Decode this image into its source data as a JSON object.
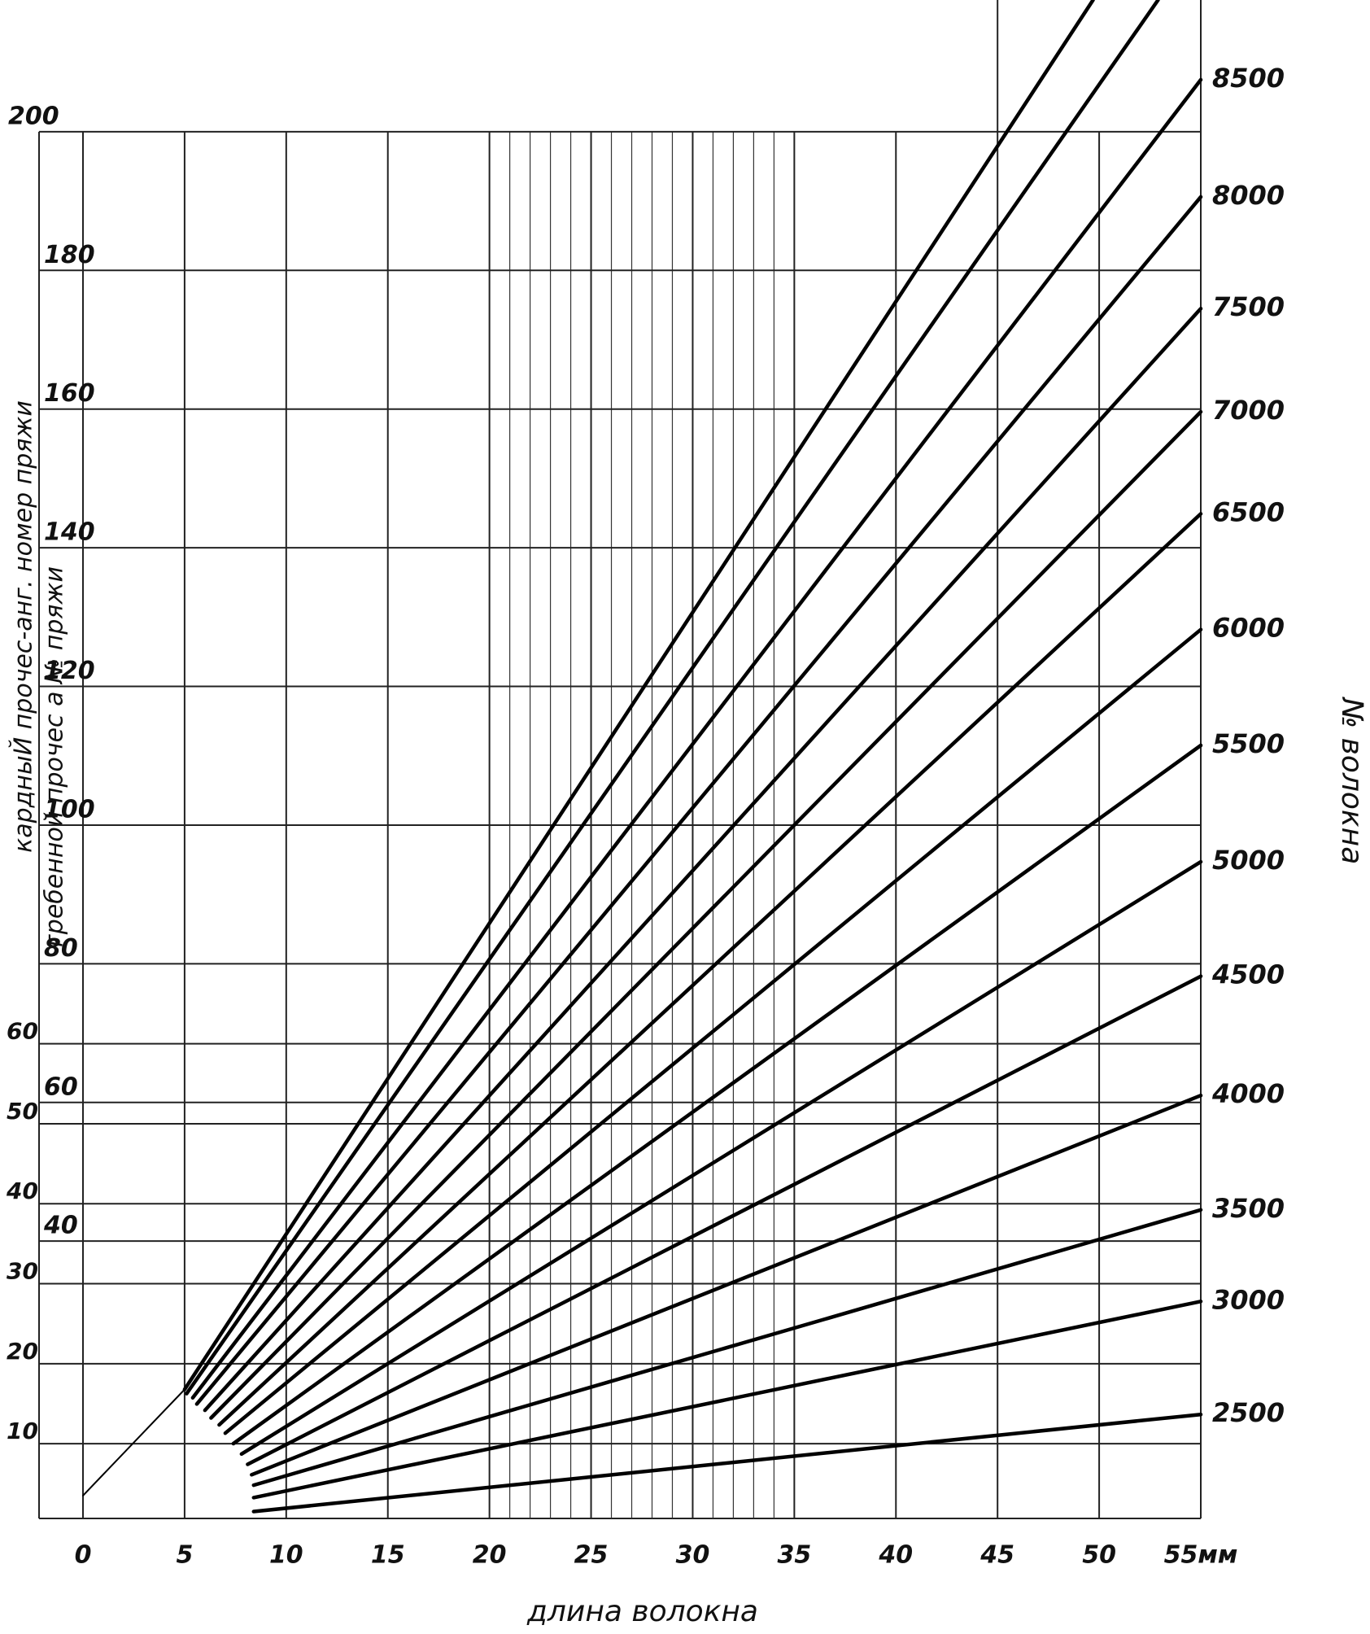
{
  "chart_data": {
    "type": "line",
    "x_label": "длина волокна",
    "y_label": "кардныЙ прочес-анг. номер пряжи",
    "y_label_inner": "гребенной прочес а № пряжи",
    "y2_label": "№ волокна",
    "xlim": [
      0,
      55
    ],
    "xticks": [
      0,
      5,
      10,
      15,
      20,
      25,
      30,
      35,
      40,
      45,
      50,
      {
        "value": 55,
        "label": "55мм"
      }
    ],
    "xgrid_minor": [
      21,
      22,
      23,
      24,
      26,
      27,
      28,
      29,
      31,
      32,
      33,
      34
    ],
    "ylim": [
      0,
      219
    ],
    "yticks": [
      40,
      60,
      80,
      100,
      120,
      140,
      160,
      180,
      200
    ],
    "y2lim": [
      0.65,
      190.5
    ],
    "y2ticks": [
      10,
      20,
      30,
      40,
      50,
      60
    ],
    "grid": true,
    "series": [
      {
        "color": "#000000",
        "x": [
          0,
          5.0
        ],
        "values": [
          3.3,
          18.6
        ]
      },
      {
        "color": "#000000",
        "x": [
          5.0,
          49.7
        ],
        "values": [
          18.6,
          219
        ]
      },
      {
        "color": "#000000",
        "x": [
          5.1,
          52.9
        ],
        "values": [
          18.0,
          219
        ]
      },
      {
        "name": "8500",
        "color": "#000000",
        "x": [
          5.4,
          55
        ],
        "values": [
          17.4,
          207.5
        ]
      },
      {
        "name": "8000",
        "color": "#000000",
        "x": [
          5.6,
          55
        ],
        "values": [
          16.5,
          190.6
        ]
      },
      {
        "name": "7500",
        "color": "#000000",
        "x": [
          6.0,
          55
        ],
        "values": [
          15.6,
          174.5
        ]
      },
      {
        "name": "7000",
        "color": "#000000",
        "x": [
          6.3,
          55
        ],
        "values": [
          14.5,
          159.6
        ]
      },
      {
        "name": "6500",
        "color": "#000000",
        "x": [
          6.7,
          55
        ],
        "values": [
          13.5,
          144.9
        ]
      },
      {
        "name": "6000",
        "color": "#000000",
        "x": [
          7.0,
          55
        ],
        "values": [
          12.3,
          128.2
        ]
      },
      {
        "name": "5500",
        "color": "#000000",
        "x": [
          7.4,
          55
        ],
        "values": [
          10.8,
          111.5
        ]
      },
      {
        "name": "5000",
        "color": "#000000",
        "x": [
          7.8,
          55
        ],
        "values": [
          9.3,
          94.7
        ]
      },
      {
        "name": "4500",
        "color": "#000000",
        "x": [
          8.1,
          55
        ],
        "values": [
          7.8,
          78.2
        ]
      },
      {
        "name": "4000",
        "color": "#000000",
        "x": [
          8.3,
          55
        ],
        "values": [
          6.3,
          61.0
        ]
      },
      {
        "name": "3500",
        "color": "#000000",
        "x": [
          8.4,
          55
        ],
        "values": [
          4.8,
          44.5
        ]
      },
      {
        "name": "3000",
        "color": "#000000",
        "x": [
          8.4,
          55
        ],
        "values": [
          3.0,
          31.3
        ]
      },
      {
        "name": "2500",
        "color": "#000000",
        "x": [
          8.4,
          55
        ],
        "values": [
          1.0,
          15.0
        ]
      }
    ]
  }
}
